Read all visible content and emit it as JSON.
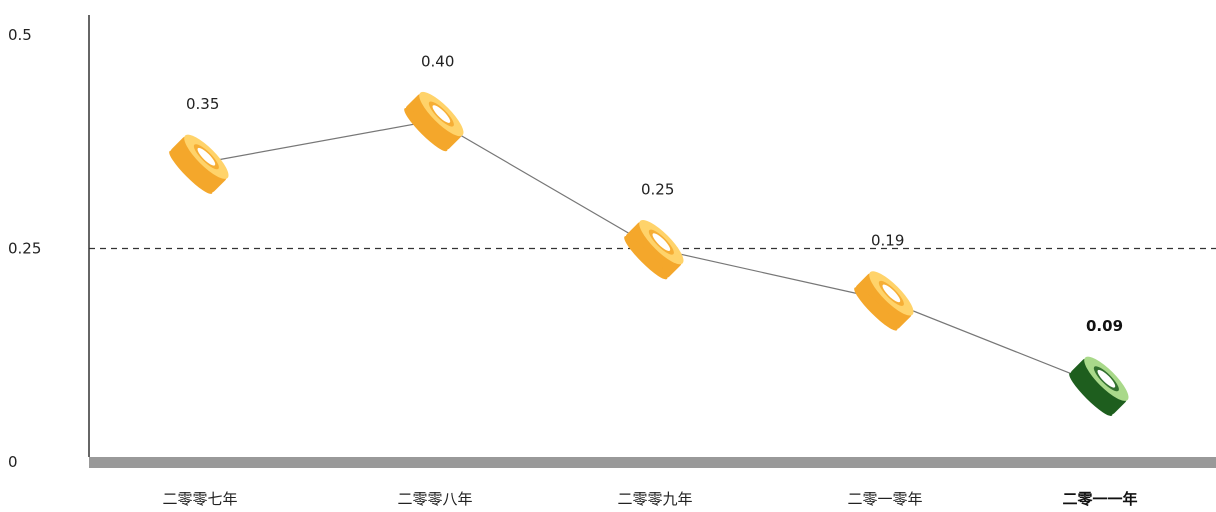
{
  "chart_data": {
    "type": "line",
    "title": "",
    "xlabel": "",
    "ylabel": "",
    "categories": [
      "二零零七年",
      "二零零八年",
      "二零零九年",
      "二零一零年",
      "二零一一年"
    ],
    "series": [
      {
        "values": [
          0.35,
          0.4,
          0.25,
          0.19,
          0.09
        ]
      }
    ],
    "data_labels": [
      "0.35",
      "0.40",
      "0.25",
      "0.19",
      "0.09"
    ],
    "highlight_index": 4,
    "ylim": [
      0,
      0.5
    ],
    "y_ticks": [
      {
        "value": 0,
        "label": "0"
      },
      {
        "value": 0.25,
        "label": "0.25"
      },
      {
        "value": 0.5,
        "label": "0.5"
      }
    ],
    "reference_line": {
      "value": 0.25,
      "style": "dashed"
    },
    "grid": false,
    "legend": "none",
    "marker": "tape-roll",
    "colors": {
      "marker_default": "#F4A72B",
      "marker_default_light": "#FFD36A",
      "marker_highlight": "#1E5E1E",
      "marker_highlight_light": "#A9D98A",
      "line": "#777777",
      "axis": "#333333",
      "baseline": "#999999",
      "reference_line": "#333333"
    }
  }
}
